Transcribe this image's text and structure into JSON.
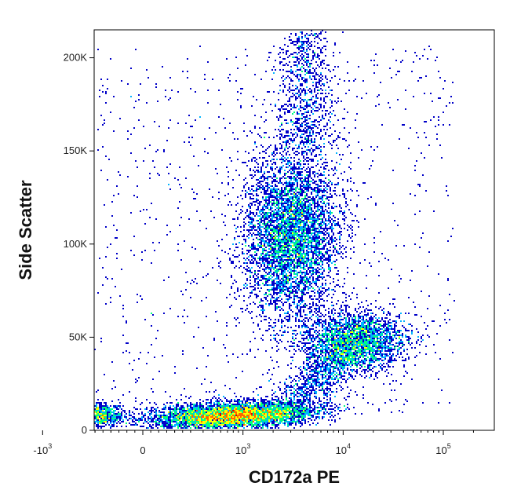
{
  "chart_data": {
    "type": "scatter",
    "subtype": "flow-cytometry-density-plot",
    "xlabel": "CD172a PE",
    "ylabel": "Side Scatter",
    "x_scale": "biexponential",
    "x_ticks": [
      {
        "value": -1000,
        "base": "-10",
        "exp": "3"
      },
      {
        "value": 0,
        "base": "0",
        "exp": ""
      },
      {
        "value": 1000,
        "base": "10",
        "exp": "3"
      },
      {
        "value": 10000,
        "base": "10",
        "exp": "4"
      },
      {
        "value": 100000,
        "base": "10",
        "exp": "5"
      }
    ],
    "y_ticks": [
      {
        "value": 0,
        "label": "0"
      },
      {
        "value": 50000,
        "label": "50K"
      },
      {
        "value": 100000,
        "label": "100K"
      },
      {
        "value": 150000,
        "label": "150K"
      },
      {
        "value": 200000,
        "label": "200K"
      }
    ],
    "ylim": [
      0,
      215000
    ],
    "xlim": [
      -2500,
      250000
    ],
    "grid": false,
    "colormap": [
      "#0000c8",
      "#00b4ff",
      "#00ff7f",
      "#ffff00",
      "#ff6400",
      "#dc0000"
    ],
    "populations": [
      {
        "x_center": 800,
        "y_center": 8000,
        "x_range": [
          -2000,
          15000
        ],
        "y_range": [
          0,
          20000
        ]
      },
      {
        "x_center": 3000,
        "y_center": 105000,
        "x_range": [
          400,
          8000
        ],
        "y_range": [
          60000,
          170000
        ]
      },
      {
        "x_center": 13000,
        "y_center": 48000,
        "x_range": [
          5000,
          45000
        ],
        "y_range": [
          25000,
          70000
        ]
      }
    ]
  }
}
